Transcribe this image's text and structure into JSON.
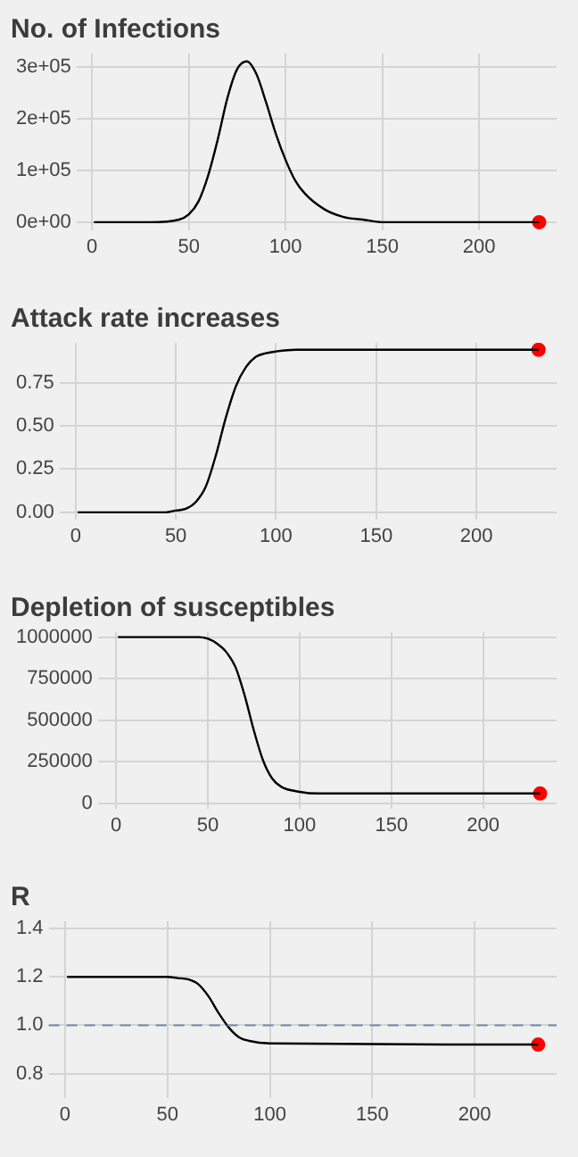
{
  "chart_data": [
    {
      "type": "line",
      "title": "No. of Infections",
      "xlim": [
        -8,
        240
      ],
      "xticks": [
        0,
        50,
        100,
        150,
        200
      ],
      "ylim": [
        -15000,
        325000
      ],
      "yticks": [
        {
          "value": 0,
          "label": "0e+00"
        },
        {
          "value": 100000,
          "label": "1e+05"
        },
        {
          "value": 200000,
          "label": "2e+05"
        },
        {
          "value": 300000,
          "label": "3e+05"
        }
      ],
      "grid": true,
      "legend": false,
      "series": [
        {
          "color": "#000000",
          "x": [
            1,
            30,
            45,
            50,
            55,
            60,
            65,
            70,
            75,
            80,
            85,
            90,
            95,
            100,
            105,
            110,
            120,
            130,
            140,
            150,
            175,
            200,
            231
          ],
          "values": [
            0,
            0,
            5000,
            15000,
            40000,
            90000,
            160000,
            240000,
            295000,
            310000,
            285000,
            230000,
            170000,
            120000,
            80000,
            55000,
            25000,
            10000,
            5000,
            0,
            0,
            0,
            0
          ]
        },
        {
          "type": "scatter",
          "color": "#ff0000",
          "marker": "circle",
          "x": [
            231
          ],
          "values": [
            0
          ]
        }
      ]
    },
    {
      "type": "line",
      "title": "Attack rate increases",
      "xlim": [
        -8,
        240
      ],
      "xticks": [
        0,
        50,
        100,
        150,
        200
      ],
      "ylim": [
        -0.04,
        0.98
      ],
      "yticks": [
        {
          "value": 0,
          "label": "0.00"
        },
        {
          "value": 0.25,
          "label": "0.25"
        },
        {
          "value": 0.5,
          "label": "0.50"
        },
        {
          "value": 0.75,
          "label": "0.75"
        }
      ],
      "grid": true,
      "legend": false,
      "series": [
        {
          "color": "#000000",
          "x": [
            1,
            45,
            50,
            55,
            60,
            65,
            70,
            75,
            80,
            85,
            90,
            95,
            100,
            110,
            231
          ],
          "values": [
            0,
            0,
            0.01,
            0.02,
            0.06,
            0.15,
            0.33,
            0.55,
            0.73,
            0.84,
            0.9,
            0.92,
            0.93,
            0.94,
            0.94
          ]
        },
        {
          "type": "scatter",
          "color": "#ff0000",
          "marker": "circle",
          "x": [
            231
          ],
          "values": [
            0.94
          ]
        }
      ]
    },
    {
      "type": "line",
      "title": "Depletion of susceptibles",
      "xlim": [
        -10,
        240
      ],
      "xticks": [
        0,
        50,
        100,
        150,
        200
      ],
      "ylim": [
        -30000,
        1030000
      ],
      "yticks": [
        0,
        250000,
        500000,
        750000,
        1000000
      ],
      "grid": true,
      "legend": false,
      "series": [
        {
          "color": "#000000",
          "x": [
            1,
            45,
            50,
            55,
            60,
            65,
            70,
            75,
            80,
            85,
            90,
            100,
            110,
            150,
            231
          ],
          "values": [
            1000000,
            1000000,
            990000,
            960000,
            910000,
            820000,
            650000,
            440000,
            260000,
            150000,
            100000,
            70000,
            60000,
            60000,
            60000
          ]
        },
        {
          "type": "scatter",
          "color": "#ff0000",
          "marker": "circle",
          "x": [
            231
          ],
          "values": [
            60000
          ]
        }
      ]
    },
    {
      "type": "line",
      "title": "R",
      "xlim": [
        -8,
        240
      ],
      "xticks": [
        0,
        50,
        100,
        150,
        200
      ],
      "ylim": [
        0.7,
        1.43
      ],
      "yticks": [
        {
          "value": 0.8,
          "label": "0.8"
        },
        {
          "value": 1,
          "label": "1.0"
        },
        {
          "value": 1.2,
          "label": "1.2"
        },
        {
          "value": 1.4,
          "label": "1.4"
        }
      ],
      "grid": true,
      "legend": false,
      "ref_lines": [
        {
          "axis": "y",
          "value": 1,
          "color": "#6b8bad",
          "line_style": "dashed"
        }
      ],
      "series": [
        {
          "color": "#000000",
          "x": [
            1,
            50,
            55,
            60,
            65,
            70,
            75,
            80,
            85,
            90,
            100,
            231
          ],
          "values": [
            1.2,
            1.2,
            1.195,
            1.19,
            1.17,
            1.12,
            1.05,
            0.99,
            0.95,
            0.935,
            0.925,
            0.92
          ]
        },
        {
          "type": "scatter",
          "color": "#ff0000",
          "marker": "circle",
          "x": [
            231
          ],
          "values": [
            0.92
          ]
        }
      ]
    }
  ]
}
